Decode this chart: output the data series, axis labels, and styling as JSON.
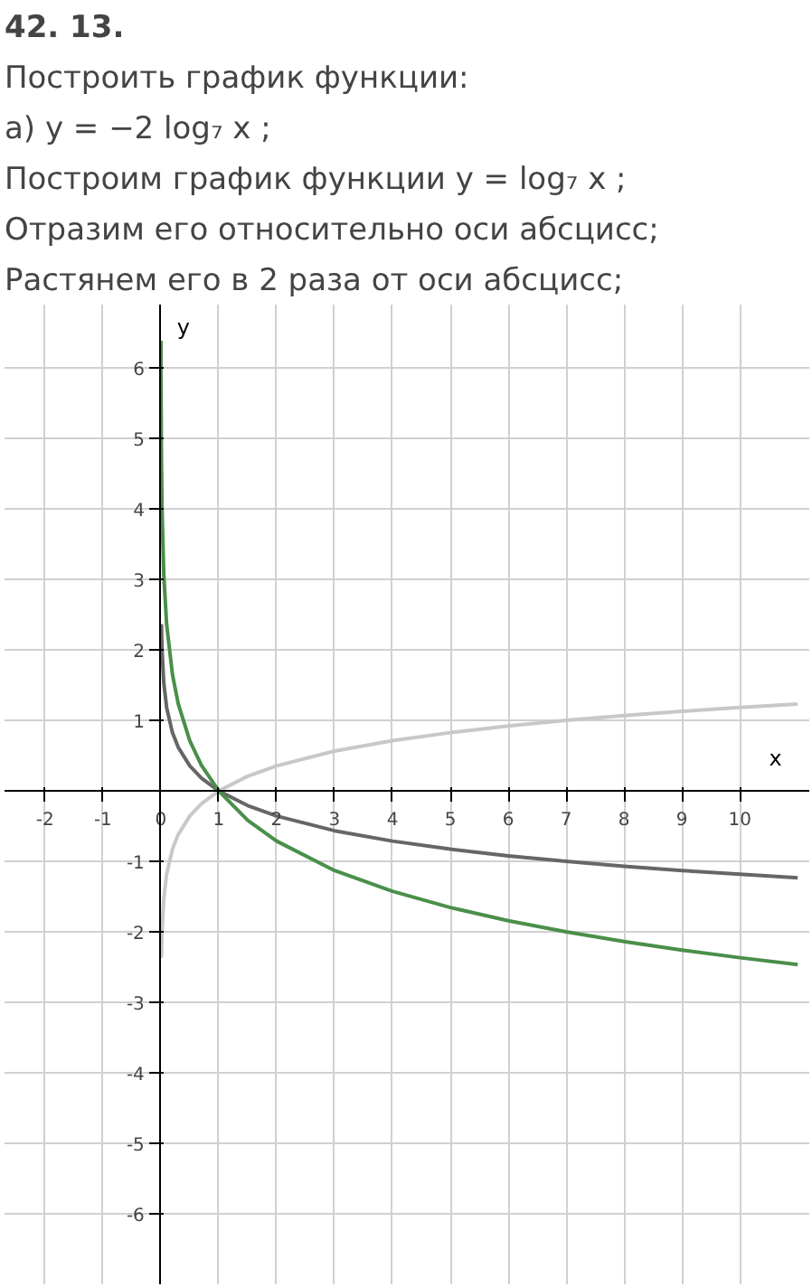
{
  "chart_data": {
    "type": "line",
    "title": "42. 13.",
    "subtitle": "Построить график функции:",
    "annotations": [
      "а) y = −2 log₇ x ;",
      "Построим график функции y = log₇ x ;",
      "Отразим его относительно оси абсцисс;",
      "Растянем его в 2 раза от оси абсцисс;"
    ],
    "xlabel": "x",
    "ylabel": "y",
    "xlim": [
      -2.7,
      11.2
    ],
    "ylim": [
      -7,
      6.9
    ],
    "xticks": [
      -2,
      -1,
      0,
      1,
      2,
      3,
      4,
      5,
      6,
      7,
      8,
      9,
      10
    ],
    "yticks": [
      -6,
      -5,
      -4,
      -3,
      -2,
      -1,
      1,
      2,
      3,
      4,
      5,
      6
    ],
    "grid": true,
    "marker": "none",
    "line_style": "solid",
    "series": [
      {
        "color": "#c8c8c8",
        "x": [
          0.01,
          0.02,
          0.05,
          0.1,
          0.2,
          0.3,
          0.5,
          0.7,
          1,
          1.5,
          2,
          3,
          4,
          5,
          6,
          7,
          8,
          9,
          10,
          11
        ],
        "values": [
          -2.367,
          -2.01,
          -1.539,
          -1.183,
          -0.827,
          -0.619,
          -0.356,
          -0.183,
          0,
          0.208,
          0.356,
          0.565,
          0.712,
          0.827,
          0.921,
          1,
          1.069,
          1.129,
          1.183,
          1.232
        ]
      },
      {
        "color": "#666666",
        "x": [
          0.01,
          0.02,
          0.05,
          0.1,
          0.2,
          0.3,
          0.5,
          0.7,
          1,
          1.5,
          2,
          3,
          4,
          5,
          6,
          7,
          8,
          9,
          10,
          11
        ],
        "values": [
          2.367,
          2.01,
          1.539,
          1.183,
          0.827,
          0.619,
          0.356,
          0.183,
          0,
          -0.208,
          -0.356,
          -0.565,
          -0.712,
          -0.827,
          -0.921,
          -1,
          -1.069,
          -1.129,
          -1.183,
          -1.232
        ]
      },
      {
        "color": "#4a8f4a",
        "x": [
          0.002,
          0.005,
          0.01,
          0.02,
          0.05,
          0.1,
          0.2,
          0.3,
          0.5,
          0.7,
          1,
          1.5,
          2,
          3,
          4,
          5,
          6,
          7,
          8,
          9,
          10,
          11
        ],
        "values": [
          6.388,
          5.446,
          4.734,
          4.02,
          3.078,
          2.366,
          1.654,
          1.238,
          0.712,
          0.366,
          0,
          -0.416,
          -0.712,
          -1.13,
          -1.424,
          -1.654,
          -1.842,
          -2,
          -2.138,
          -2.258,
          -2.366,
          -2.464
        ]
      }
    ]
  }
}
